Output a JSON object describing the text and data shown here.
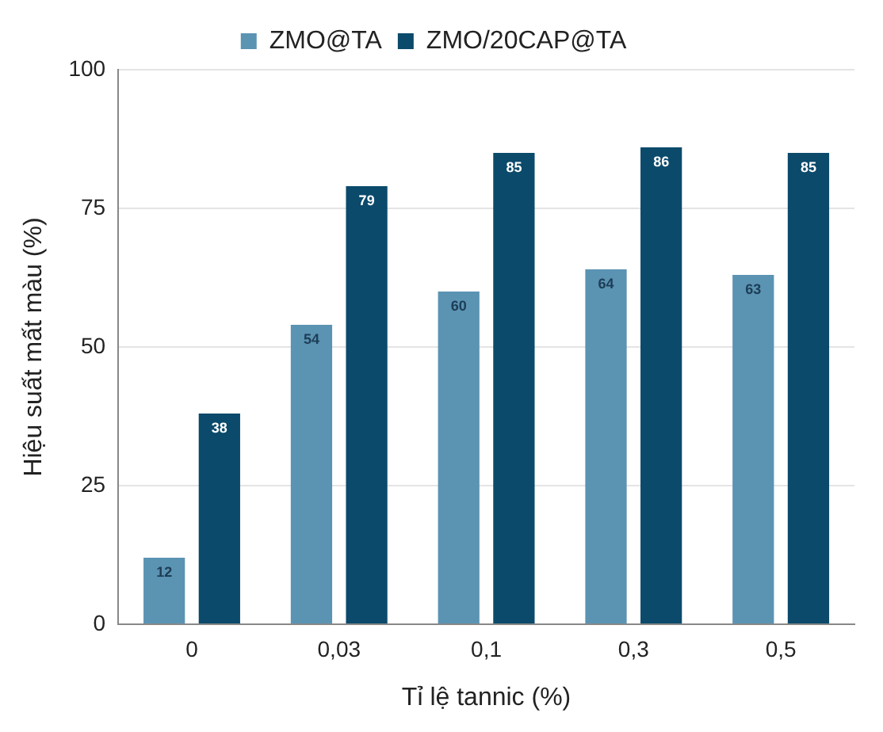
{
  "chart_data": {
    "type": "bar",
    "xlabel": "Tỉ lệ tannic (%)",
    "ylabel": "Hiệu suất mất màu (%)",
    "categories": [
      "0",
      "0,03",
      "0,1",
      "0,3",
      "0,5"
    ],
    "series": [
      {
        "name": "ZMO@TA",
        "color": "#5b93b3",
        "values": [
          12,
          54,
          60,
          64,
          63
        ]
      },
      {
        "name": "ZMO/20CAP@TA",
        "color": "#0b4a6b",
        "values": [
          38,
          79,
          85,
          86,
          85
        ]
      }
    ],
    "ylim": [
      0,
      100
    ],
    "yticks": [
      0,
      25,
      50,
      75,
      100
    ],
    "grid": "y",
    "legend": "top",
    "data_labels": true
  }
}
